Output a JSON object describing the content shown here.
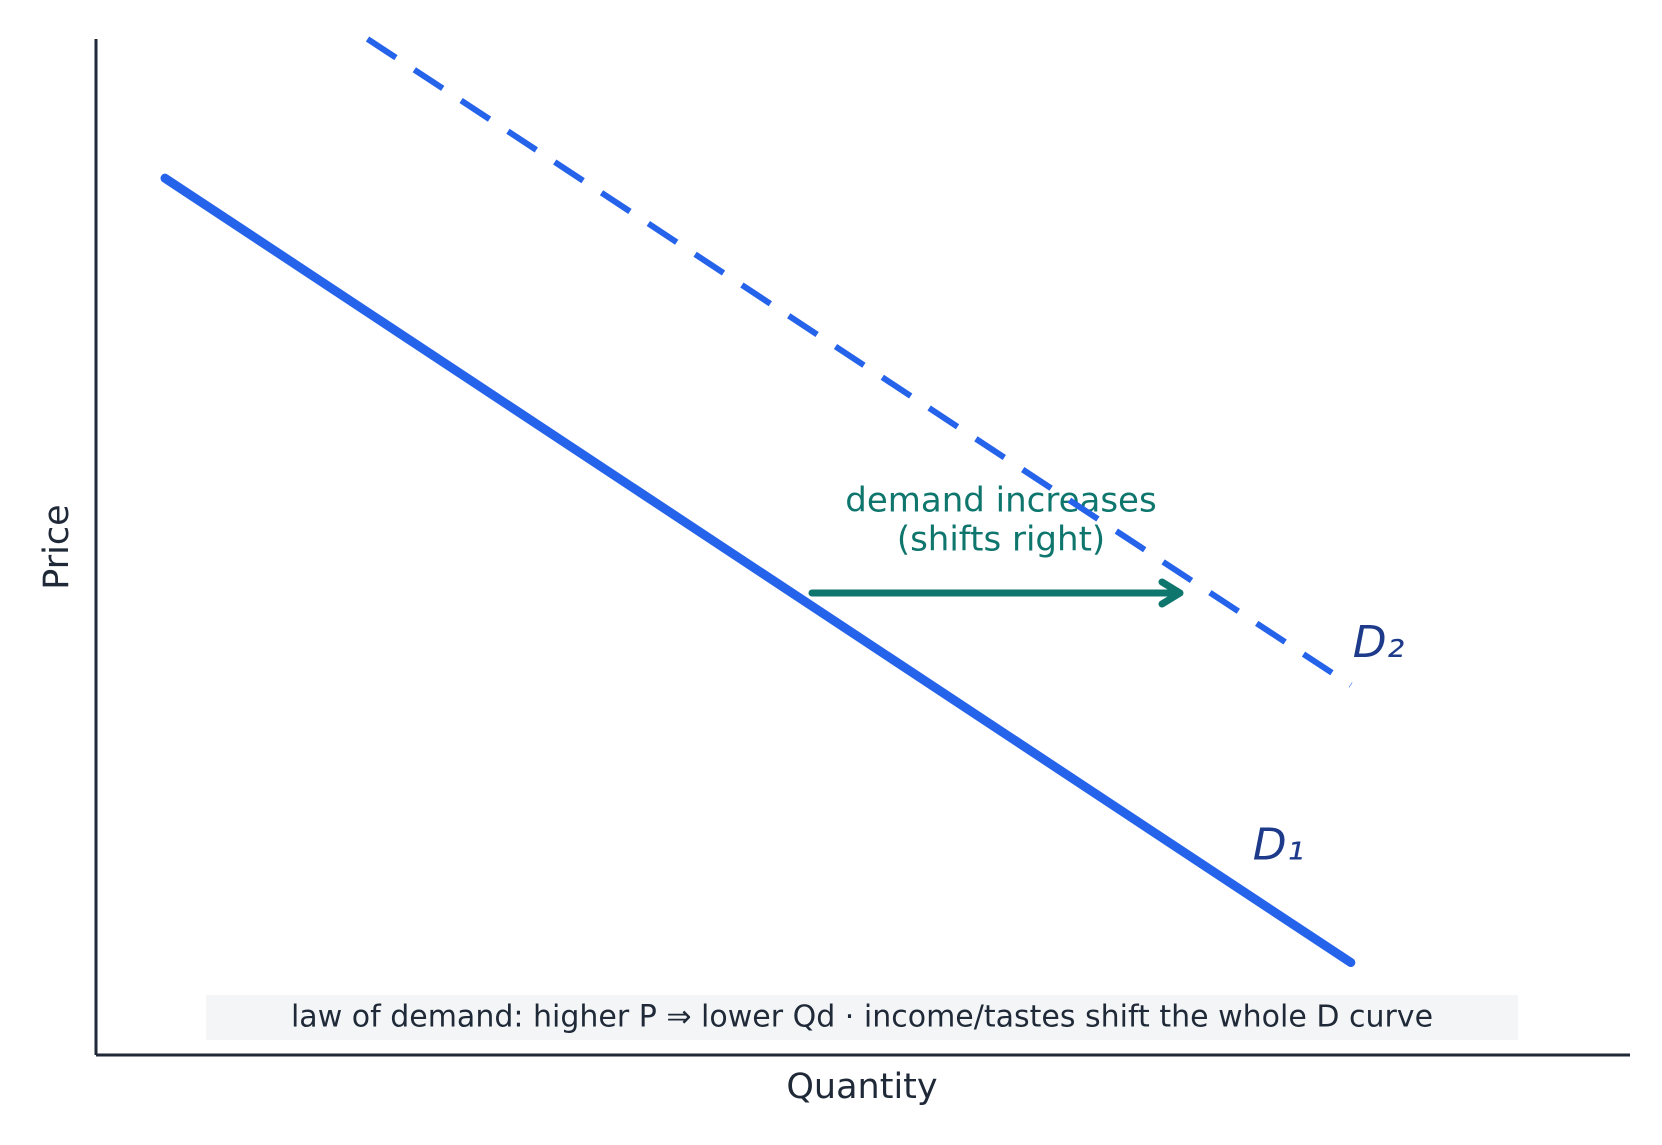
{
  "chart_data": {
    "type": "line",
    "x_label": "Quantity",
    "y_label": "Price",
    "xlim": [
      0,
      10
    ],
    "ylim": [
      0,
      10
    ],
    "series": [
      {
        "name": "D₁",
        "color": "#2563eb",
        "style": "solid",
        "x": [
          0.45,
          8.18
        ],
        "values": [
          8.63,
          0.91
        ]
      },
      {
        "name": "D₂",
        "color": "#2563eb",
        "style": "dashed",
        "x": [
          1.77,
          8.18
        ],
        "values": [
          10,
          3.64
        ]
      }
    ],
    "annotation": [
      "demand increases",
      "(shifts right)"
    ],
    "note": "law of demand: higher P ⇒  lower Qd  ·  income/tastes shift the whole D curve"
  }
}
